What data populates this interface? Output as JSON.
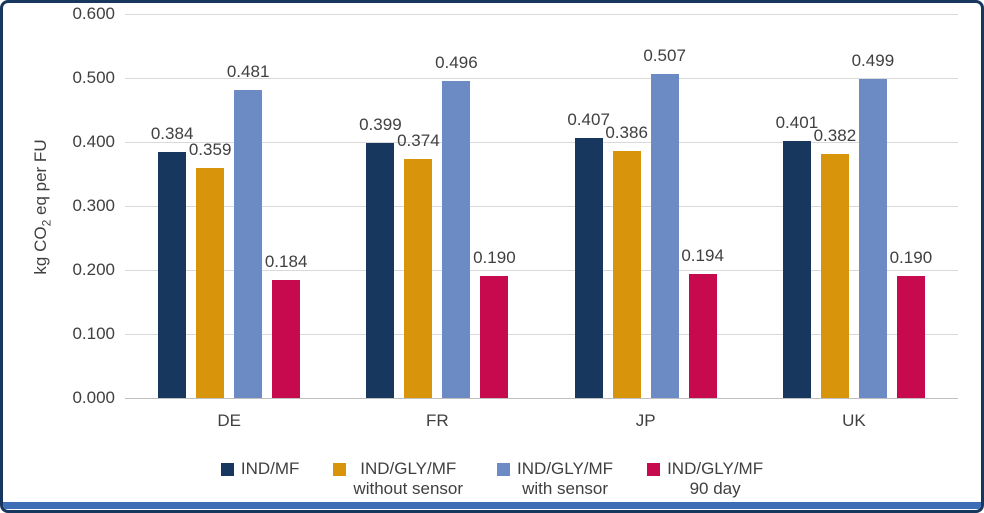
{
  "chart_data": {
    "type": "bar",
    "title": "",
    "categories": [
      "DE",
      "FR",
      "JP",
      "UK"
    ],
    "series": [
      {
        "name": "IND/MF",
        "name_line2": "",
        "color": "#17375E",
        "values": [
          0.384,
          0.399,
          0.407,
          0.401
        ]
      },
      {
        "name": "IND/GLY/MF",
        "name_line2": "without sensor",
        "color": "#D8940A",
        "values": [
          0.359,
          0.374,
          0.386,
          0.382
        ]
      },
      {
        "name": "IND/GLY/MF",
        "name_line2": "with sensor",
        "color": "#6C8BC4",
        "values": [
          0.481,
          0.496,
          0.507,
          0.499
        ]
      },
      {
        "name": "IND/GLY/MF",
        "name_line2": "90 day",
        "color": "#C60A4D",
        "values": [
          0.184,
          0.19,
          0.194,
          0.19
        ]
      }
    ],
    "ylabel": {
      "pre": "kg CO",
      "sub": "2",
      "post": " eq per FU"
    },
    "xlabel": "",
    "ylim": [
      0,
      0.6
    ],
    "ytick_step": 0.1,
    "ytick_decimals": 3,
    "value_label_decimals": 3,
    "grid": true,
    "legend_position": "bottom"
  },
  "style_colors": {
    "frame_border": "#17375E",
    "bottom_accent_bar": "#3D6EB5",
    "gridline": "#D9D9D9",
    "axis_line": "#BFBFBF",
    "text": "#404040",
    "background": "#FFFFFF"
  }
}
